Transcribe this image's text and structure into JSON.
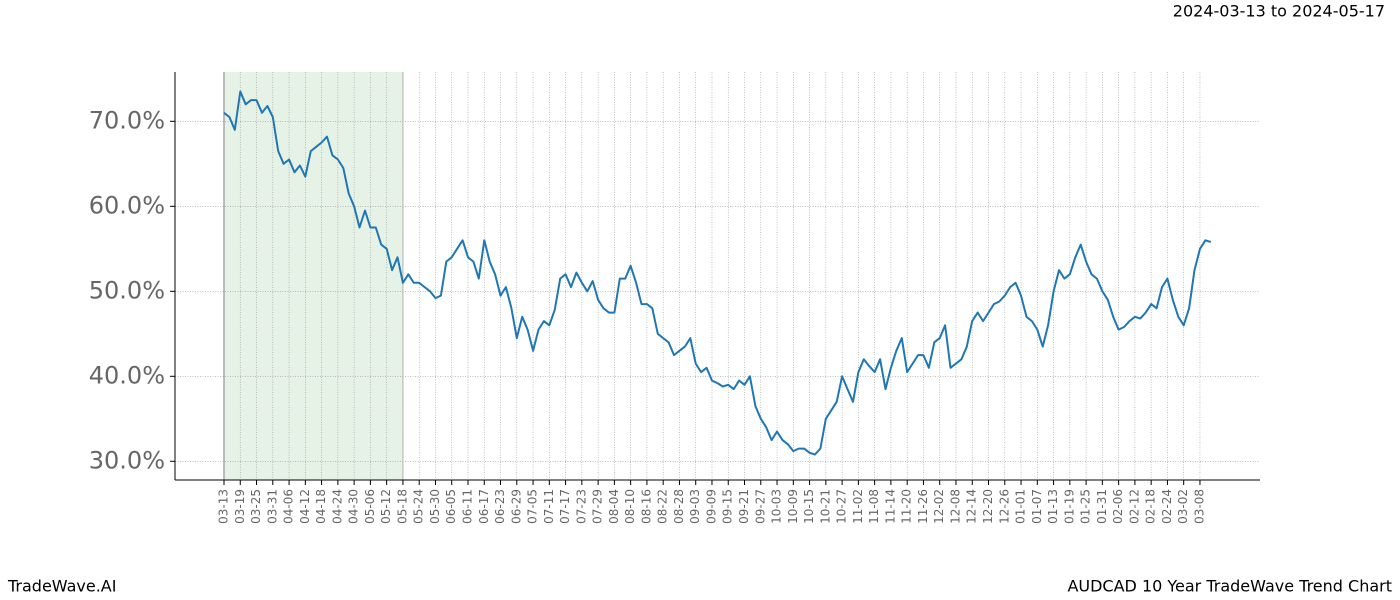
{
  "chart_data": {
    "type": "line",
    "header_right": "2024-03-13 to 2024-05-17",
    "footer_left": "TradeWave.AI",
    "footer_right": "AUDCAD 10 Year TradeWave Trend Chart",
    "categories": [
      "03-13",
      null,
      null,
      "03-19",
      null,
      null,
      "03-25",
      null,
      null,
      "03-31",
      null,
      null,
      "04-06",
      null,
      null,
      "04-12",
      null,
      null,
      "04-18",
      null,
      null,
      "04-24",
      null,
      null,
      "04-30",
      null,
      null,
      "05-06",
      null,
      null,
      "05-12",
      null,
      null,
      "05-18",
      null,
      null,
      "05-24",
      null,
      null,
      "05-30",
      null,
      null,
      "06-05",
      null,
      null,
      "06-11",
      null,
      null,
      "06-17",
      null,
      null,
      "06-23",
      null,
      null,
      "06-29",
      null,
      null,
      "07-05",
      null,
      null,
      "07-11",
      null,
      null,
      "07-17",
      null,
      null,
      "07-23",
      null,
      null,
      "07-29",
      null,
      null,
      "08-04",
      null,
      null,
      "08-10",
      null,
      null,
      "08-16",
      null,
      null,
      "08-22",
      null,
      null,
      "08-28",
      null,
      null,
      "09-03",
      null,
      null,
      "09-09",
      null,
      null,
      "09-15",
      null,
      null,
      "09-21",
      null,
      null,
      "09-27",
      null,
      null,
      "10-03",
      null,
      null,
      "10-09",
      null,
      null,
      "10-15",
      null,
      null,
      "10-21",
      null,
      null,
      "10-27",
      null,
      null,
      "11-02",
      null,
      null,
      "11-08",
      null,
      null,
      "11-14",
      null,
      null,
      "11-20",
      null,
      null,
      "11-26",
      null,
      null,
      "12-02",
      null,
      null,
      "12-08",
      null,
      null,
      "12-14",
      null,
      null,
      "12-20",
      null,
      null,
      "12-26",
      null,
      null,
      "01-01",
      null,
      null,
      "01-07",
      null,
      null,
      "01-13",
      null,
      null,
      "01-19",
      null,
      null,
      "01-25",
      null,
      null,
      "01-31",
      null,
      null,
      "02-06",
      null,
      null,
      "02-12",
      null,
      null,
      "02-18",
      null,
      null,
      "02-24",
      null,
      null,
      "03-02",
      null,
      null,
      "03-08",
      null,
      null
    ],
    "series": [
      {
        "color": "#1f77b4",
        "values": [
          71.0,
          70.5,
          69.0,
          73.5,
          72.0,
          72.5,
          72.5,
          71.0,
          71.8,
          70.5,
          66.5,
          65.0,
          65.5,
          64.0,
          64.8,
          63.5,
          66.5,
          67.0,
          67.5,
          68.2,
          66.0,
          65.5,
          64.5,
          61.5,
          60.0,
          57.5,
          59.5,
          57.5,
          57.5,
          55.5,
          55.0,
          52.5,
          54.0,
          51.0,
          52.0,
          51.0,
          51.0,
          50.5,
          50.0,
          49.2,
          49.5,
          53.5,
          54.0,
          55.0,
          56.0,
          54.0,
          53.5,
          51.5,
          56.0,
          53.5,
          52.0,
          49.5,
          50.5,
          48.0,
          44.5,
          47.0,
          45.5,
          43.0,
          45.5,
          46.5,
          46.0,
          47.8,
          51.5,
          52.0,
          50.5,
          52.2,
          51.0,
          50.0,
          51.2,
          49.0,
          48.0,
          47.5,
          47.5,
          51.5,
          51.5,
          53.0,
          51.0,
          48.5,
          48.5,
          48.0,
          45.0,
          44.5,
          44.0,
          42.5,
          43.0,
          43.5,
          44.5,
          41.5,
          40.5,
          41.0,
          39.5,
          39.2,
          38.8,
          39.0,
          38.5,
          39.5,
          39.0,
          40.0,
          36.5,
          35.0,
          34.0,
          32.5,
          33.5,
          32.5,
          32.0,
          31.2,
          31.5,
          31.5,
          31.0,
          30.8,
          31.5,
          35.0,
          36.0,
          37.0,
          40.0,
          38.5,
          37.0,
          40.5,
          42.0,
          41.2,
          40.5,
          42.0,
          38.5,
          41.0,
          43.0,
          44.5,
          40.5,
          41.5,
          42.5,
          42.5,
          41.0,
          44.0,
          44.5,
          46.0,
          41.0,
          41.5,
          42.0,
          43.5,
          46.5,
          47.5,
          46.5,
          47.5,
          48.5,
          48.8,
          49.5,
          50.5,
          51.0,
          49.5,
          47.0,
          46.5,
          45.5,
          43.5,
          46.0,
          50.0,
          52.5,
          51.5,
          52.0,
          54.0,
          55.5,
          53.5,
          52.0,
          51.5,
          50.0,
          49.0,
          47.0,
          45.5,
          45.8,
          46.5,
          47.0,
          46.8,
          47.5,
          48.5,
          48.0,
          50.5,
          51.5,
          49.0,
          47.0,
          46.0,
          48.0,
          52.5,
          55.0,
          56.0,
          55.8
        ]
      }
    ],
    "highlight": {
      "from": "03-13",
      "to": "05-18",
      "color": "#e6f2e6"
    },
    "ylim": [
      27.8,
      75.8
    ],
    "yticks": [
      {
        "value": 30,
        "label": "30.0%"
      },
      {
        "value": 40,
        "label": "40.0%"
      },
      {
        "value": 50,
        "label": "50.0%"
      },
      {
        "value": 60,
        "label": "60.0%"
      },
      {
        "value": 70,
        "label": "70.0%"
      }
    ],
    "grid": true
  }
}
